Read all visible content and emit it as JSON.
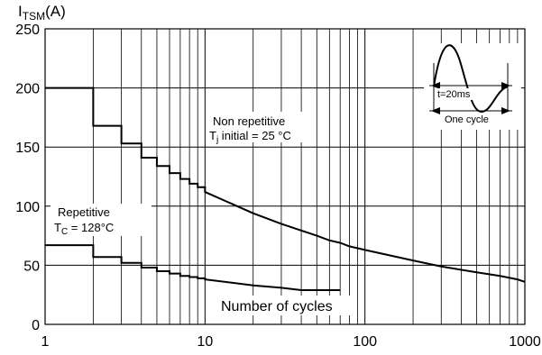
{
  "chart_data": {
    "type": "line",
    "ylabel_main": "I",
    "ylabel_sub": "TSM",
    "ylabel_unit": "(A)",
    "xlabel": "Number of cycles",
    "x_scale": "log",
    "xlim": [
      1,
      1000
    ],
    "ylim": [
      0,
      250
    ],
    "x_ticks": [
      1,
      10,
      100,
      1000
    ],
    "x_tick_labels": [
      "1",
      "10",
      "100",
      "1000"
    ],
    "y_ticks": [
      0,
      50,
      100,
      150,
      200,
      250
    ],
    "y_tick_labels": [
      "0",
      "50",
      "100",
      "150",
      "200",
      "250"
    ],
    "grid": true,
    "series": [
      {
        "name": "Non repetitive",
        "condition_prefix": "T",
        "condition_sub": "j",
        "condition_suffix": " initial = 25 °C",
        "x": [
          1,
          2,
          3,
          4,
          5,
          6,
          7,
          8,
          9,
          10,
          20,
          30,
          50,
          60,
          70,
          80,
          100,
          200,
          300,
          500,
          700,
          900,
          1000
        ],
        "y": [
          200,
          168,
          153,
          141,
          134,
          128,
          123,
          119,
          116,
          112,
          94,
          85,
          75,
          71,
          69,
          66,
          63,
          54,
          49,
          44,
          41,
          38,
          36
        ]
      },
      {
        "name": "Repetitive",
        "condition_prefix": "T",
        "condition_sub": "C",
        "condition_suffix": " = 128°C",
        "x": [
          1,
          2,
          3,
          4,
          5,
          6,
          7,
          8,
          9,
          10,
          20,
          30,
          40,
          50,
          70
        ],
        "y": [
          67,
          57,
          52,
          48,
          45,
          43,
          41,
          40,
          39,
          38,
          33,
          31,
          29,
          29,
          29
        ]
      }
    ],
    "inset": {
      "period_label": "t=20ms",
      "cycle_label": "One cycle"
    }
  }
}
